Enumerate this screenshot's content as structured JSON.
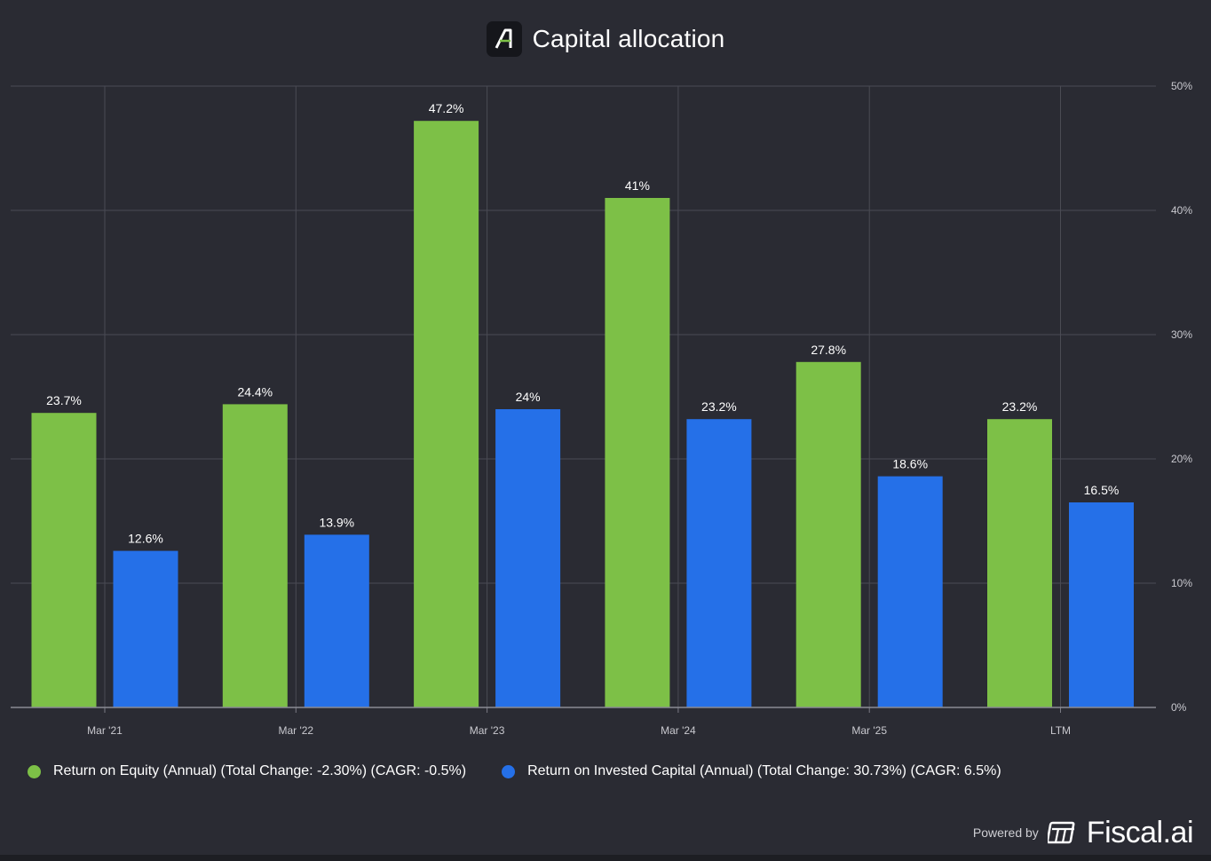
{
  "header": {
    "title": "Capital allocation",
    "logo_icon": "stylized-a-logo-icon"
  },
  "chart_data": {
    "type": "bar",
    "title": "Capital allocation",
    "categories": [
      "Mar '21",
      "Mar '22",
      "Mar '23",
      "Mar '24",
      "Mar '25",
      "LTM"
    ],
    "series": [
      {
        "name": "Return on Equity (Annual) (Total Change: -2.30%) (CAGR: -0.5%)",
        "color": "#7dc047",
        "values": [
          23.7,
          24.4,
          47.2,
          41,
          27.8,
          23.2
        ],
        "labels": [
          "23.7%",
          "24.4%",
          "47.2%",
          "41%",
          "27.8%",
          "23.2%"
        ]
      },
      {
        "name": "Return on Invested Capital (Annual) (Total Change: 30.73%) (CAGR: 6.5%)",
        "color": "#2570e8",
        "values": [
          12.6,
          13.9,
          24,
          23.2,
          18.6,
          16.5
        ],
        "labels": [
          "12.6%",
          "13.9%",
          "24%",
          "23.2%",
          "18.6%",
          "16.5%"
        ]
      }
    ],
    "y_ticks": [
      "0%",
      "10%",
      "20%",
      "30%",
      "40%",
      "50%"
    ],
    "ylim": [
      0,
      50
    ],
    "y_axis_side": "right",
    "grid": true,
    "legend_position": "bottom-left"
  },
  "footer": {
    "powered_by": "Powered by",
    "brand": "Fiscal.ai",
    "brand_icon": "fiscal-ai-logo-icon"
  }
}
